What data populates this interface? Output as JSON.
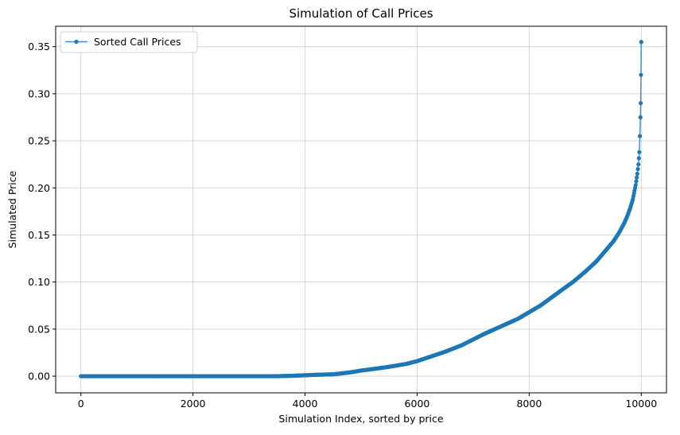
{
  "chart_data": {
    "type": "line",
    "title": "Simulation of Call Prices",
    "xlabel": "Simulation Index, sorted by price",
    "ylabel": "Simulated Price",
    "xlim": [
      -450,
      10450
    ],
    "ylim": [
      -0.0177,
      0.3717
    ],
    "xticks": [
      0,
      2000,
      4000,
      6000,
      8000,
      10000
    ],
    "yticks": [
      0.0,
      0.05,
      0.1,
      0.15,
      0.2,
      0.25,
      0.3,
      0.35
    ],
    "ytick_labels": [
      "0.00",
      "0.05",
      "0.10",
      "0.15",
      "0.20",
      "0.25",
      "0.30",
      "0.35"
    ],
    "grid": true,
    "legend": {
      "position": "top-left"
    },
    "series": [
      {
        "name": "Sorted Call Prices",
        "color": "#1f77b4",
        "marker": "circle",
        "x": [
          0,
          500,
          1000,
          1500,
          2000,
          2500,
          3000,
          3500,
          3800,
          4000,
          4200,
          4500,
          4800,
          5000,
          5200,
          5500,
          5800,
          6000,
          6200,
          6500,
          6800,
          7000,
          7200,
          7500,
          7800,
          8000,
          8200,
          8500,
          8800,
          9000,
          9200,
          9400,
          9500,
          9600,
          9700,
          9750,
          9800,
          9850,
          9900,
          9930,
          9950,
          9965,
          9975,
          9985,
          9990,
          9995,
          10000
        ],
        "y": [
          0.0,
          0.0,
          0.0,
          0.0,
          0.0,
          0.0,
          0.0,
          0.0,
          0.0005,
          0.001,
          0.0015,
          0.002,
          0.004,
          0.006,
          0.0075,
          0.01,
          0.013,
          0.016,
          0.02,
          0.026,
          0.033,
          0.039,
          0.045,
          0.053,
          0.061,
          0.068,
          0.075,
          0.088,
          0.101,
          0.111,
          0.122,
          0.136,
          0.143,
          0.152,
          0.163,
          0.17,
          0.178,
          0.188,
          0.203,
          0.215,
          0.225,
          0.238,
          0.255,
          0.275,
          0.29,
          0.32,
          0.355
        ]
      }
    ]
  }
}
